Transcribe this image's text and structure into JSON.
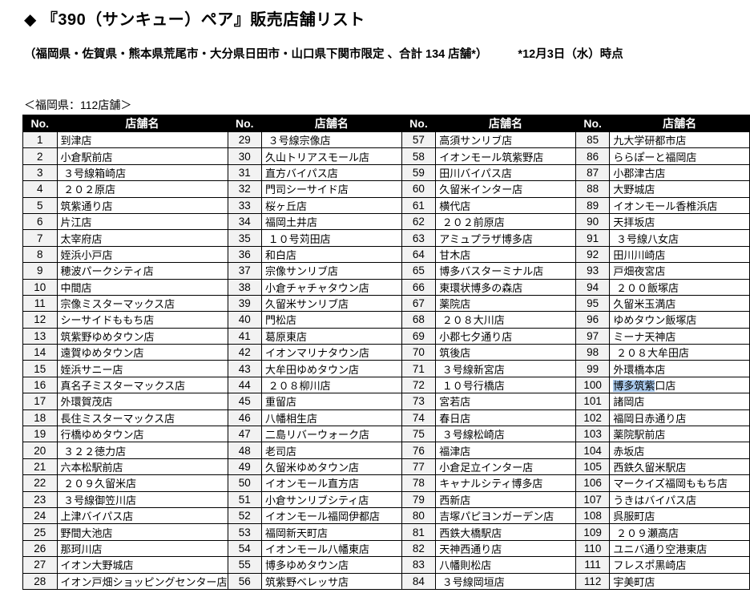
{
  "page": {
    "title": "◆ 『390（サンキュー）ペア』販売店舗リスト",
    "subtitle": "（福岡県・佐賀県・熊本県荒尾市・大分県日田市・山口県下関市限定 、合計 134 店舗*）",
    "as_of": "*12月3日（水）時点",
    "section_label": "＜福岡県：112店舗＞"
  },
  "colors": {
    "header_bg": "#000000",
    "header_text": "#ffffff",
    "no_cell_bg": "#f2f2f2",
    "border": "#000000",
    "selection_highlight": "#a9c9ec"
  },
  "table": {
    "header": {
      "no": "No.",
      "name": "店舗名"
    },
    "column_groups": 4,
    "rows_per_group": 28,
    "stores": [
      {
        "no": "1",
        "name": "到津店"
      },
      {
        "no": "2",
        "name": "小倉駅前店"
      },
      {
        "no": "3",
        "name": " ３号線箱崎店"
      },
      {
        "no": "4",
        "name": " ２０２原店"
      },
      {
        "no": "5",
        "name": "筑紫通り店"
      },
      {
        "no": "6",
        "name": "片江店"
      },
      {
        "no": "7",
        "name": "太宰府店"
      },
      {
        "no": "8",
        "name": "姪浜小戸店"
      },
      {
        "no": "9",
        "name": "穂波パークシティ店"
      },
      {
        "no": "10",
        "name": "中間店"
      },
      {
        "no": "11",
        "name": "宗像ミスターマックス店"
      },
      {
        "no": "12",
        "name": "シーサイドももち店"
      },
      {
        "no": "13",
        "name": "筑紫野ゆめタウン店"
      },
      {
        "no": "14",
        "name": "遠賀ゆめタウン店"
      },
      {
        "no": "15",
        "name": "姪浜サニー店"
      },
      {
        "no": "16",
        "name": "真名子ミスターマックス店"
      },
      {
        "no": "17",
        "name": "外環賀茂店"
      },
      {
        "no": "18",
        "name": "長住ミスターマックス店"
      },
      {
        "no": "19",
        "name": "行橋ゆめタウン店"
      },
      {
        "no": "20",
        "name": " ３２２徳力店"
      },
      {
        "no": "21",
        "name": "六本松駅前店"
      },
      {
        "no": "22",
        "name": " ２０９久留米店"
      },
      {
        "no": "23",
        "name": " ３号線御笠川店"
      },
      {
        "no": "24",
        "name": "上津バイパス店"
      },
      {
        "no": "25",
        "name": "野間大池店"
      },
      {
        "no": "26",
        "name": "那珂川店"
      },
      {
        "no": "27",
        "name": "イオン大野城店"
      },
      {
        "no": "28",
        "name": "イオン戸畑ショッピングセンター店"
      },
      {
        "no": "29",
        "name": " ３号線宗像店"
      },
      {
        "no": "30",
        "name": "久山トリアスモール店"
      },
      {
        "no": "31",
        "name": "直方バイパス店"
      },
      {
        "no": "32",
        "name": "門司シーサイド店"
      },
      {
        "no": "33",
        "name": "桜ヶ丘店"
      },
      {
        "no": "34",
        "name": "福岡土井店"
      },
      {
        "no": "35",
        "name": " １０号苅田店"
      },
      {
        "no": "36",
        "name": "和白店"
      },
      {
        "no": "37",
        "name": "宗像サンリブ店"
      },
      {
        "no": "38",
        "name": "小倉チャチャタウン店"
      },
      {
        "no": "39",
        "name": "久留米サンリブ店"
      },
      {
        "no": "40",
        "name": "門松店"
      },
      {
        "no": "41",
        "name": "葛原東店"
      },
      {
        "no": "42",
        "name": "イオンマリナタウン店"
      },
      {
        "no": "43",
        "name": "大牟田ゆめタウン店"
      },
      {
        "no": "44",
        "name": " ２０８柳川店"
      },
      {
        "no": "45",
        "name": "重留店"
      },
      {
        "no": "46",
        "name": "八幡相生店"
      },
      {
        "no": "47",
        "name": "二島リバーウォーク店"
      },
      {
        "no": "48",
        "name": "老司店"
      },
      {
        "no": "49",
        "name": "久留米ゆめタウン店"
      },
      {
        "no": "50",
        "name": "イオンモール直方店"
      },
      {
        "no": "51",
        "name": "小倉サンリブシティ店"
      },
      {
        "no": "52",
        "name": "イオンモール福岡伊都店"
      },
      {
        "no": "53",
        "name": "福岡新天町店"
      },
      {
        "no": "54",
        "name": "イオンモール八幡東店"
      },
      {
        "no": "55",
        "name": "博多ゆめタウン店"
      },
      {
        "no": "56",
        "name": "筑紫野ベレッサ店"
      },
      {
        "no": "57",
        "name": "高須サンリブ店"
      },
      {
        "no": "58",
        "name": "イオンモール筑紫野店"
      },
      {
        "no": "59",
        "name": "田川バイパス店"
      },
      {
        "no": "60",
        "name": "久留米インター店"
      },
      {
        "no": "61",
        "name": "横代店"
      },
      {
        "no": "62",
        "name": " ２０２前原店"
      },
      {
        "no": "63",
        "name": "アミュプラザ博多店"
      },
      {
        "no": "64",
        "name": "甘木店"
      },
      {
        "no": "65",
        "name": "博多バスターミナル店"
      },
      {
        "no": "66",
        "name": "東環状博多の森店"
      },
      {
        "no": "67",
        "name": "薬院店"
      },
      {
        "no": "68",
        "name": " ２０８大川店"
      },
      {
        "no": "69",
        "name": "小郡七夕通り店"
      },
      {
        "no": "70",
        "name": "筑後店"
      },
      {
        "no": "71",
        "name": " ３号線新宮店"
      },
      {
        "no": "72",
        "name": " １０号行橋店"
      },
      {
        "no": "73",
        "name": "宮若店"
      },
      {
        "no": "74",
        "name": "春日店"
      },
      {
        "no": "75",
        "name": " ３号線松崎店"
      },
      {
        "no": "76",
        "name": "福津店"
      },
      {
        "no": "77",
        "name": "小倉足立インター店"
      },
      {
        "no": "78",
        "name": "キャナルシティ博多店"
      },
      {
        "no": "79",
        "name": "西新店"
      },
      {
        "no": "80",
        "name": "吉塚パピヨンガーデン店"
      },
      {
        "no": "81",
        "name": "西鉄大橋駅店"
      },
      {
        "no": "82",
        "name": "天神西通り店"
      },
      {
        "no": "83",
        "name": "八幡則松店"
      },
      {
        "no": "84",
        "name": " ３号線岡垣店"
      },
      {
        "no": "85",
        "name": "九大学研都市店"
      },
      {
        "no": "86",
        "name": "ららぽーと福岡店"
      },
      {
        "no": "87",
        "name": "小郡津古店"
      },
      {
        "no": "88",
        "name": "大野城店"
      },
      {
        "no": "89",
        "name": "イオンモール香椎浜店"
      },
      {
        "no": "90",
        "name": "天拝坂店"
      },
      {
        "no": "91",
        "name": " ３号線八女店"
      },
      {
        "no": "92",
        "name": "田川川崎店"
      },
      {
        "no": "93",
        "name": "戸畑夜宮店"
      },
      {
        "no": "94",
        "name": " ２００飯塚店"
      },
      {
        "no": "95",
        "name": "久留米玉満店"
      },
      {
        "no": "96",
        "name": "ゆめタウン飯塚店"
      },
      {
        "no": "97",
        "name": "ミーナ天神店"
      },
      {
        "no": "98",
        "name": " ２０８大牟田店"
      },
      {
        "no": "99",
        "name": "外環橋本店"
      },
      {
        "no": "100",
        "name": "博多筑紫口店",
        "highlight": "博多筑紫"
      },
      {
        "no": "101",
        "name": "諸岡店"
      },
      {
        "no": "102",
        "name": "福岡日赤通り店"
      },
      {
        "no": "103",
        "name": "薬院駅前店"
      },
      {
        "no": "104",
        "name": "赤坂店"
      },
      {
        "no": "105",
        "name": "西鉄久留米駅店"
      },
      {
        "no": "106",
        "name": "マークイズ福岡ももち店"
      },
      {
        "no": "107",
        "name": "うきはバイパス店"
      },
      {
        "no": "108",
        "name": "呉服町店"
      },
      {
        "no": "109",
        "name": " ２０９瀬高店"
      },
      {
        "no": "110",
        "name": "ユニバ通り空港東店"
      },
      {
        "no": "111",
        "name": "フレスポ黒崎店"
      },
      {
        "no": "112",
        "name": "宇美町店"
      }
    ]
  }
}
